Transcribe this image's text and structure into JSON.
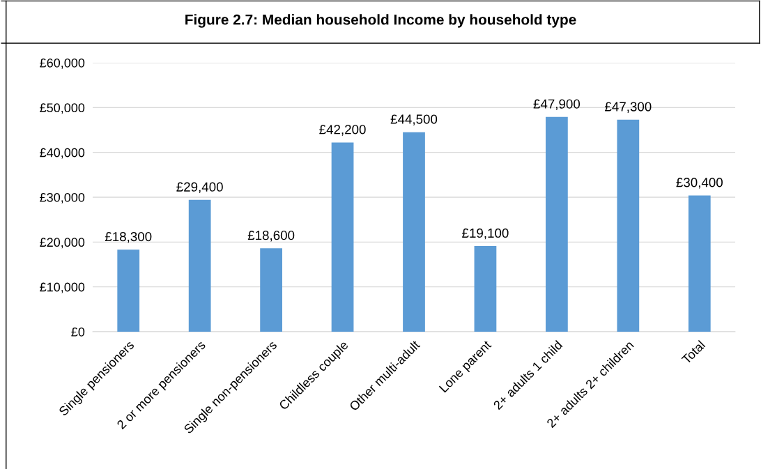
{
  "chart_data": {
    "type": "bar",
    "title": "Figure 2.7: Median household Income by household type",
    "categories": [
      "Single pensioners",
      "2 or more pensioners",
      "Single non-pensioners",
      "Childless couple",
      "Other multi-adult",
      "Lone parent",
      "2+ adults 1 child",
      "2+ adults 2+ children",
      "Total"
    ],
    "values": [
      18300,
      29400,
      18600,
      42200,
      44500,
      19100,
      47900,
      47300,
      30400
    ],
    "value_labels": [
      "£18,300",
      "£29,400",
      "£18,600",
      "£42,200",
      "£44,500",
      "£19,100",
      "£47,900",
      "£47,300",
      "£30,400"
    ],
    "color": "#5b9bd5",
    "ylim": [
      0,
      60000
    ],
    "yticks": [
      {
        "value": 0,
        "label": "£0"
      },
      {
        "value": 10000,
        "label": "£10,000"
      },
      {
        "value": 20000,
        "label": "£20,000"
      },
      {
        "value": 30000,
        "label": "£30,000"
      },
      {
        "value": 40000,
        "label": "£40,000"
      },
      {
        "value": 50000,
        "label": "£50,000"
      },
      {
        "value": 60000,
        "label": "£60,000"
      }
    ],
    "grid": "y",
    "legend": false
  }
}
